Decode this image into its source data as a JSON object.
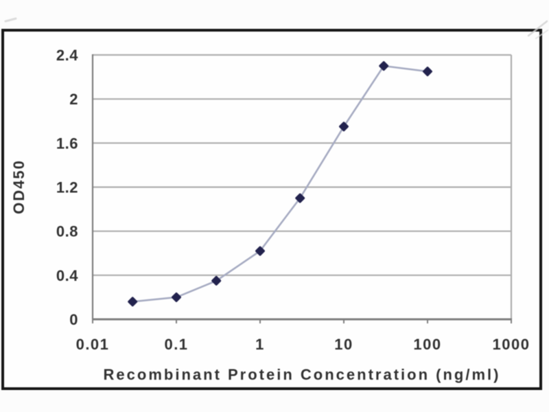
{
  "figure": {
    "border_color": "#171717",
    "background": "#fefefe"
  },
  "chart_data": {
    "type": "line",
    "title": "",
    "xlabel": "Recombinant Protein Concentration (ng/ml)",
    "ylabel": "OD450",
    "x_scale": "log",
    "xlim": [
      0.01,
      1000
    ],
    "ylim": [
      0,
      2.4
    ],
    "x_ticks": [
      0.01,
      0.1,
      1,
      10,
      100,
      1000
    ],
    "x_tick_labels": [
      "0.01",
      "0.1",
      "1",
      "10",
      "100",
      "1000"
    ],
    "y_ticks": [
      0,
      0.4,
      0.8,
      1.2,
      1.6,
      2,
      2.4
    ],
    "y_tick_labels": [
      "0",
      "0.4",
      "0.8",
      "1.2",
      "1.6",
      "2",
      "2.4"
    ],
    "grid": true,
    "legend_position": "none",
    "series": [
      {
        "name": "OD450",
        "x": [
          0.03,
          0.1,
          0.3,
          1,
          3,
          10,
          30,
          100
        ],
        "values": [
          0.16,
          0.2,
          0.35,
          0.62,
          1.1,
          1.75,
          2.3,
          2.25
        ],
        "marker": "diamond",
        "line_color": "#a6abc2",
        "marker_color": "#23234e"
      }
    ],
    "colors": {
      "grid": "#aeaeae",
      "axis": "#7e7e7e",
      "labels": "#313131"
    }
  }
}
